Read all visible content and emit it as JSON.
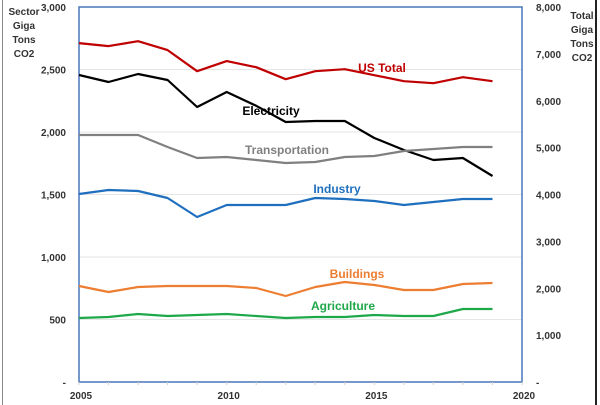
{
  "chart_data": {
    "type": "line",
    "title": "",
    "xlabel": "",
    "ylabel_left": [
      "Sector",
      "Giga",
      "Tons",
      "CO2"
    ],
    "ylabel_right": [
      "Total",
      "Giga",
      "Tons",
      "CO2"
    ],
    "x": [
      2005,
      2006,
      2007,
      2008,
      2009,
      2010,
      2011,
      2012,
      2013,
      2014,
      2015,
      2016,
      2017,
      2018,
      2019
    ],
    "xlim": [
      2005,
      2020
    ],
    "x_ticks": [
      "2005",
      "2010",
      "2015",
      "2020"
    ],
    "ylim_left": [
      0,
      3000
    ],
    "ylim_right": [
      0,
      8000
    ],
    "y_ticks_left": [
      "-",
      "500",
      "1,000",
      "1,500",
      "2,000",
      "2,500",
      "3,000"
    ],
    "y_ticks_right": [
      "-",
      "1,000",
      "2,000",
      "3,000",
      "4,000",
      "5,000",
      "6,000",
      "7,000",
      "8,000"
    ],
    "grid": true,
    "legend": "inline labels",
    "series": [
      {
        "name": "US Total",
        "axis": "right",
        "color": "#c00000",
        "values": [
          7230,
          7165,
          7270,
          7080,
          6630,
          6845,
          6716,
          6460,
          6630,
          6674,
          6545,
          6418,
          6375,
          6503,
          6418
        ]
      },
      {
        "name": "Electricity",
        "axis": "left",
        "color": "#000000",
        "values": [
          2456,
          2400,
          2464,
          2416,
          2200,
          2320,
          2210,
          2080,
          2088,
          2088,
          1952,
          1856,
          1776,
          1792,
          1648
        ]
      },
      {
        "name": "Transportation",
        "axis": "left",
        "color": "#808080",
        "values": [
          1976,
          1976,
          1976,
          1880,
          1792,
          1800,
          1776,
          1752,
          1760,
          1800,
          1808,
          1848,
          1864,
          1880,
          1880
        ]
      },
      {
        "name": "Industry",
        "axis": "left",
        "color": "#1f6fbf",
        "values": [
          1504,
          1536,
          1528,
          1472,
          1320,
          1416,
          1416,
          1416,
          1472,
          1464,
          1448,
          1416,
          1440,
          1464,
          1464
        ]
      },
      {
        "name": "Buildings",
        "axis": "left",
        "color": "#ed7d31",
        "values": [
          768,
          720,
          760,
          768,
          768,
          768,
          752,
          688,
          760,
          800,
          776,
          736,
          736,
          784,
          792
        ]
      },
      {
        "name": "Agriculture",
        "axis": "left",
        "color": "#1fa84a",
        "values": [
          512,
          520,
          544,
          528,
          536,
          544,
          528,
          512,
          520,
          520,
          536,
          528,
          528,
          584,
          584
        ]
      }
    ]
  }
}
